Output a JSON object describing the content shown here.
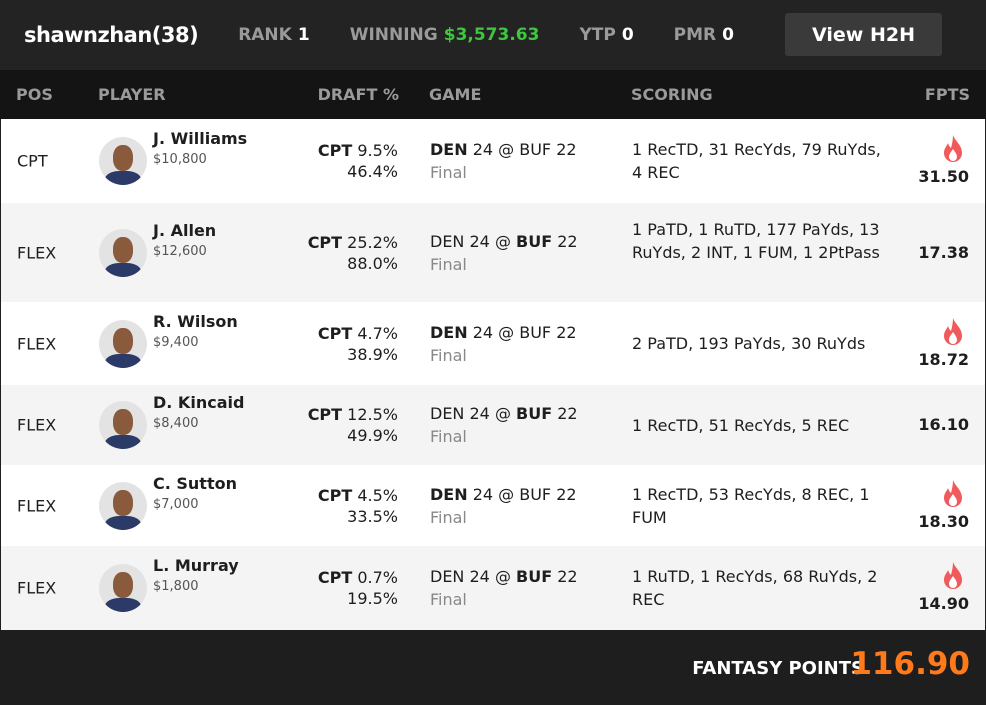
{
  "header": {
    "username": "shawnzhan",
    "entries": "(38)",
    "rank_label": "RANK",
    "rank": "1",
    "winning_label": "WINNING",
    "winning": "$3,573.63",
    "ytp_label": "YTP",
    "ytp": "0",
    "pmr_label": "PMR",
    "pmr": "0",
    "h2h_button": "View H2H"
  },
  "columns": [
    "POS",
    "PLAYER",
    "DRAFT %",
    "GAME",
    "SCORING",
    "FPTS"
  ],
  "rows": [
    {
      "pos": "CPT",
      "name": "J. Williams",
      "salary": "$10,800",
      "cpt": "CPT",
      "cpt_pct": "9.5%",
      "draft_pct": "46.4%",
      "away": "DEN",
      "away_score": "24",
      "home": "BUF",
      "home_score": "22",
      "bold": "away",
      "status": "Final",
      "scoring": "1 RecTD, 31 RecYds, 79 RuYds, 4 REC",
      "fpts": "31.50",
      "hot": true
    },
    {
      "pos": "FLEX",
      "name": "J. Allen",
      "salary": "$12,600",
      "cpt": "CPT",
      "cpt_pct": "25.2%",
      "draft_pct": "88.0%",
      "away": "DEN",
      "away_score": "24",
      "home": "BUF",
      "home_score": "22",
      "bold": "home",
      "status": "Final",
      "scoring": "1 PaTD, 1 RuTD, 177 PaYds, 13 RuYds, 2 INT, 1 FUM, 1 2PtPass",
      "fpts": "17.38",
      "hot": false
    },
    {
      "pos": "FLEX",
      "name": "R. Wilson",
      "salary": "$9,400",
      "cpt": "CPT",
      "cpt_pct": "4.7%",
      "draft_pct": "38.9%",
      "away": "DEN",
      "away_score": "24",
      "home": "BUF",
      "home_score": "22",
      "bold": "away",
      "status": "Final",
      "scoring": "2 PaTD, 193 PaYds, 30 RuYds",
      "fpts": "18.72",
      "hot": true
    },
    {
      "pos": "FLEX",
      "name": "D. Kincaid",
      "salary": "$8,400",
      "cpt": "CPT",
      "cpt_pct": "12.5%",
      "draft_pct": "49.9%",
      "away": "DEN",
      "away_score": "24",
      "home": "BUF",
      "home_score": "22",
      "bold": "home",
      "status": "Final",
      "scoring": "1 RecTD, 51 RecYds, 5 REC",
      "fpts": "16.10",
      "hot": false
    },
    {
      "pos": "FLEX",
      "name": "C. Sutton",
      "salary": "$7,000",
      "cpt": "CPT",
      "cpt_pct": "4.5%",
      "draft_pct": "33.5%",
      "away": "DEN",
      "away_score": "24",
      "home": "BUF",
      "home_score": "22",
      "bold": "away",
      "status": "Final",
      "scoring": "1 RecTD, 53 RecYds, 8 REC, 1 FUM",
      "fpts": "18.30",
      "hot": true
    },
    {
      "pos": "FLEX",
      "name": "L. Murray",
      "salary": "$1,800",
      "cpt": "CPT",
      "cpt_pct": "0.7%",
      "draft_pct": "19.5%",
      "away": "DEN",
      "away_score": "24",
      "home": "BUF",
      "home_score": "22",
      "bold": "home",
      "status": "Final",
      "scoring": "1 RuTD, 1 RecYds, 68 RuYds, 2 REC",
      "fpts": "14.90",
      "hot": true
    }
  ],
  "footer": {
    "label": "FANTASY POINTS",
    "total": "116.90"
  },
  "colors": {
    "winning": "#3fc63f",
    "total": "#ff7a1a",
    "flame": "#f05a5a"
  }
}
